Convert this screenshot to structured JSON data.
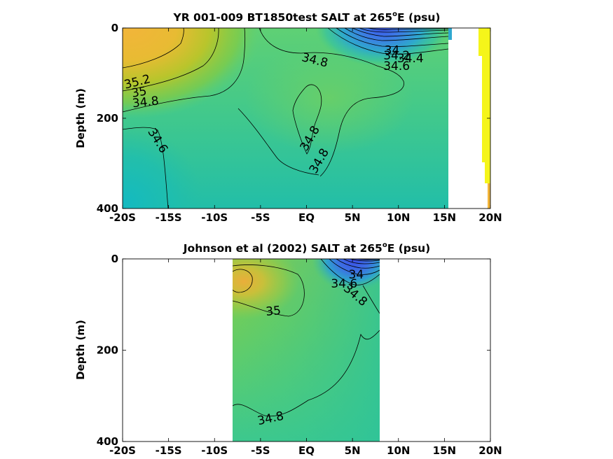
{
  "chart_data": [
    {
      "type": "heatmap",
      "title": {
        "main": "YR 001-009 BT1850test SALT at 265",
        "sup": "o",
        "tail": "E (psu)"
      },
      "ylabel": "Depth (m)",
      "xlim": [
        -20,
        20
      ],
      "ylim": [
        0,
        400
      ],
      "y_inverted": true,
      "x_ticks": [
        {
          "value": -20,
          "label": "-20S"
        },
        {
          "value": -15,
          "label": "-15S"
        },
        {
          "value": -10,
          "label": "-10S"
        },
        {
          "value": -5,
          "label": "-5S"
        },
        {
          "value": 0,
          "label": "EQ"
        },
        {
          "value": 5,
          "label": "5N"
        },
        {
          "value": 10,
          "label": "10N"
        },
        {
          "value": 15,
          "label": "15N"
        },
        {
          "value": 20,
          "label": "20N"
        }
      ],
      "y_ticks": [
        {
          "value": 0,
          "label": "0"
        },
        {
          "value": 200,
          "label": "200"
        },
        {
          "value": 400,
          "label": "400"
        }
      ],
      "contour_labels": [
        {
          "text": "35.2",
          "x": -18.4,
          "y": 120,
          "angle": -14
        },
        {
          "text": "35",
          "x": -18.2,
          "y": 143,
          "angle": -10
        },
        {
          "text": "34.8",
          "x": -17.5,
          "y": 165,
          "angle": -6
        },
        {
          "text": "34.6",
          "x": -16.2,
          "y": 250,
          "angle": 58
        },
        {
          "text": "34.8",
          "x": 0.9,
          "y": 72,
          "angle": 14
        },
        {
          "text": "34.8",
          "x": 0.4,
          "y": 245,
          "angle": -60
        },
        {
          "text": "34.8",
          "x": 1.4,
          "y": 295,
          "angle": -60
        },
        {
          "text": "34",
          "x": 9.3,
          "y": 50,
          "angle": 0
        },
        {
          "text": "34.2",
          "x": 9.8,
          "y": 62,
          "angle": 0
        },
        {
          "text": "34.4",
          "x": 11.3,
          "y": 68,
          "angle": 0
        },
        {
          "text": "34.6",
          "x": 9.8,
          "y": 85,
          "angle": 0
        }
      ]
    },
    {
      "type": "heatmap",
      "title": {
        "main": "Johnson et al (2002) SALT at 265",
        "sup": "o",
        "tail": "E (psu)"
      },
      "ylabel": "Depth (m)",
      "xlim": [
        -20,
        20
      ],
      "ylim": [
        0,
        400
      ],
      "y_inverted": true,
      "x_ticks": [
        {
          "value": -20,
          "label": "-20S"
        },
        {
          "value": -15,
          "label": "-15S"
        },
        {
          "value": -10,
          "label": "-10S"
        },
        {
          "value": -5,
          "label": "-5S"
        },
        {
          "value": 0,
          "label": "EQ"
        },
        {
          "value": 5,
          "label": "5N"
        },
        {
          "value": 10,
          "label": "10N"
        },
        {
          "value": 15,
          "label": "15N"
        },
        {
          "value": 20,
          "label": "20N"
        }
      ],
      "y_ticks": [
        {
          "value": 0,
          "label": "0"
        },
        {
          "value": 200,
          "label": "200"
        },
        {
          "value": 400,
          "label": "400"
        }
      ],
      "contour_labels": [
        {
          "text": "35",
          "x": -3.6,
          "y": 115,
          "angle": -5
        },
        {
          "text": "34.8",
          "x": -3.9,
          "y": 350,
          "angle": -12
        },
        {
          "text": "34",
          "x": 5.4,
          "y": 35,
          "angle": 0
        },
        {
          "text": "34.6",
          "x": 4.1,
          "y": 55,
          "angle": 0
        },
        {
          "text": "34.8",
          "x": 5.3,
          "y": 80,
          "angle": 40
        }
      ]
    }
  ],
  "colors": {
    "fresh": "#3a4fe6",
    "mid": "#35c98c",
    "salty": "#f2b53a",
    "yellow_strip": "#f5f51a",
    "contour": "#000000"
  }
}
